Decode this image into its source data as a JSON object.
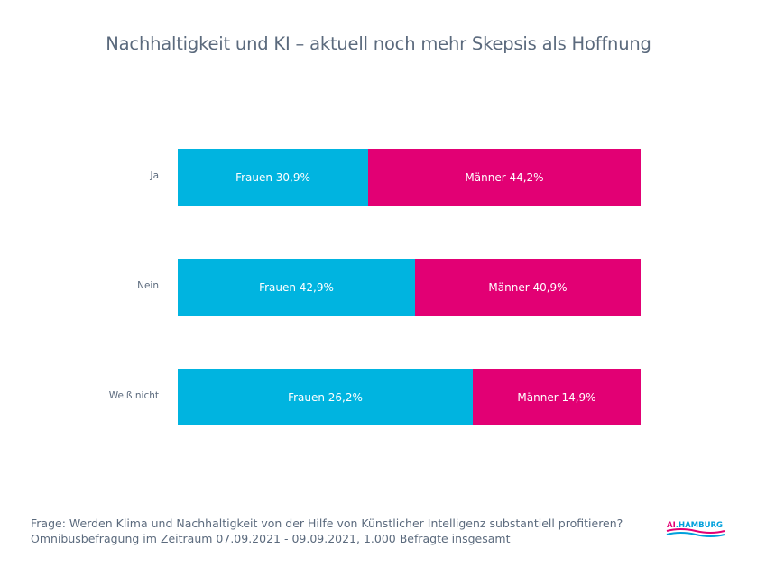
{
  "chart_data": {
    "type": "bar",
    "orientation": "horizontal",
    "stacked": true,
    "normalized": true,
    "title": "Nachhaltigkeit und KI – aktuell noch mehr Skepsis als Hoffnung",
    "xlabel": "",
    "ylabel": "",
    "categories": [
      "Ja",
      "Nein",
      "Weiß nicht"
    ],
    "series": [
      {
        "name": "Frauen",
        "color": "#00b4e0",
        "values": [
          30.9,
          42.9,
          26.2
        ],
        "labels": [
          "Frauen 30,9%",
          "Frauen 42,9%",
          "Frauen 26,2%"
        ]
      },
      {
        "name": "Männer",
        "color": "#e20074",
        "values": [
          44.2,
          40.9,
          14.9
        ],
        "labels": [
          "Männer 44,2%",
          "Männer 40,9%",
          "Männer 14,9%"
        ]
      }
    ],
    "grid": false,
    "legend": "none"
  },
  "footer": {
    "line1": "Frage: Werden Klima und Nachhaltigkeit von der Hilfe von Künstlicher Intelligenz substantiell profitieren?",
    "line2": "Omnibusbefragung im Zeitraum 07.09.2021 - 09.09.2021, 1.000 Befragte insgesamt"
  },
  "logo": {
    "part1": "AI",
    "part2": ".HAMBURG",
    "color1": "#e20074",
    "color2": "#00a0dc"
  }
}
